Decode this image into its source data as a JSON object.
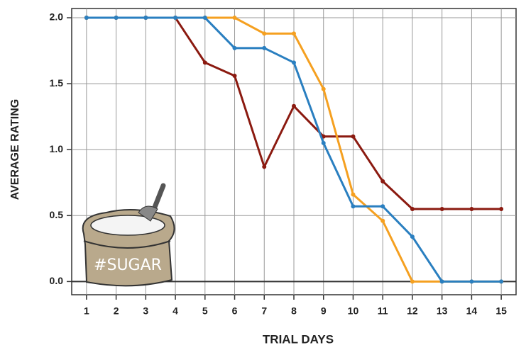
{
  "chart_data": {
    "type": "line",
    "x_label": "TRIAL DAYS",
    "y_label": "AVERAGE RATING",
    "annotation": "#SUGAR",
    "x": [
      1,
      2,
      3,
      4,
      5,
      6,
      7,
      8,
      9,
      10,
      11,
      12,
      13,
      14,
      15
    ],
    "series": [
      {
        "color": "#8b1a10",
        "values": [
          2,
          2,
          2,
          2,
          1.66,
          1.56,
          0.87,
          1.33,
          1.1,
          1.1,
          0.76,
          0.55,
          0.55,
          0.55,
          0.55
        ]
      },
      {
        "color": "#f5a020",
        "values": [
          2,
          2,
          2,
          2,
          2,
          2,
          1.88,
          1.88,
          1.46,
          0.66,
          0.46,
          0,
          0,
          0,
          0
        ]
      },
      {
        "color": "#2a7fc0",
        "values": [
          2,
          2,
          2,
          2,
          2,
          1.77,
          1.77,
          1.66,
          1.05,
          0.57,
          0.57,
          0.34,
          0,
          0,
          0
        ]
      }
    ],
    "xlim": [
      0.5,
      15.5
    ],
    "xticks": [
      1,
      2,
      3,
      4,
      5,
      6,
      7,
      8,
      9,
      10,
      11,
      12,
      13,
      14,
      15
    ],
    "ylim": [
      -0.1,
      2.07
    ],
    "yticks": [
      {
        "value": 0,
        "label": "0.0"
      },
      0.5,
      {
        "value": 1,
        "label": "1.0"
      },
      1.5,
      {
        "value": 2,
        "label": "2.0"
      }
    ],
    "grid": true
  }
}
